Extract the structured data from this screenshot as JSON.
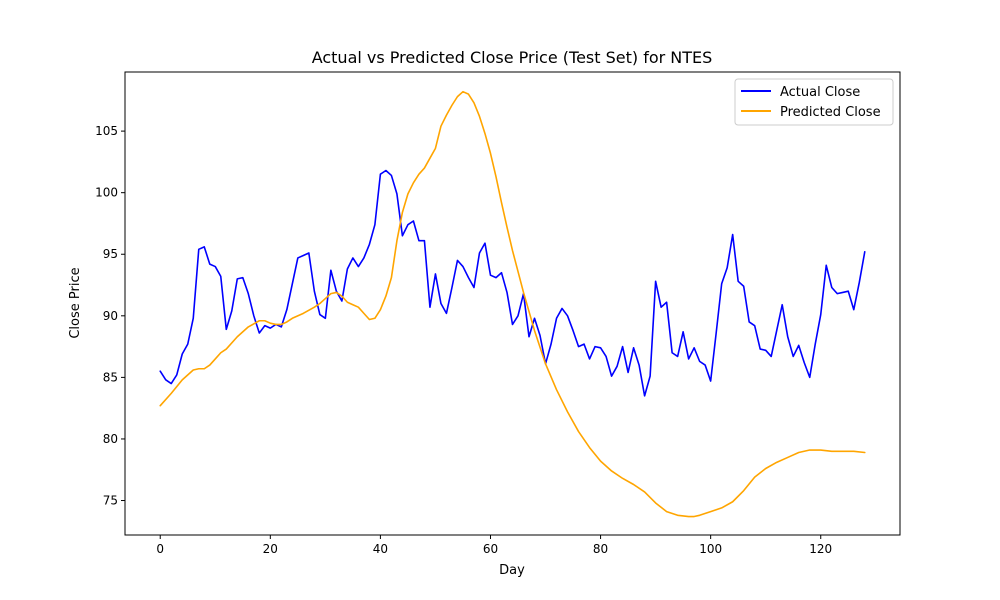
{
  "chart_data": {
    "type": "line",
    "title": "Actual vs Predicted Close Price (Test Set) for NTES",
    "xlabel": "Day",
    "ylabel": "Close Price",
    "xlim": [
      -6.4,
      134.4
    ],
    "ylim": [
      72.2,
      109.8
    ],
    "xticks": [
      0,
      20,
      40,
      60,
      80,
      100,
      120
    ],
    "yticks": [
      75,
      80,
      85,
      90,
      95,
      100,
      105
    ],
    "grid": false,
    "legend_position": "top-right",
    "series": [
      {
        "name": "Actual Close",
        "color": "#0000ff",
        "x": [
          0,
          1,
          2,
          3,
          4,
          5,
          6,
          7,
          8,
          9,
          10,
          11,
          12,
          13,
          14,
          15,
          16,
          17,
          18,
          19,
          20,
          21,
          22,
          23,
          24,
          25,
          26,
          27,
          28,
          29,
          30,
          31,
          32,
          33,
          34,
          35,
          36,
          37,
          38,
          39,
          40,
          41,
          42,
          43,
          44,
          45,
          46,
          47,
          48,
          49,
          50,
          51,
          52,
          53,
          54,
          55,
          56,
          57,
          58,
          59,
          60,
          61,
          62,
          63,
          64,
          65,
          66,
          67,
          68,
          69,
          70,
          71,
          72,
          73,
          74,
          75,
          76,
          77,
          78,
          79,
          80,
          81,
          82,
          83,
          84,
          85,
          86,
          87,
          88,
          89,
          90,
          91,
          92,
          93,
          94,
          95,
          96,
          97,
          98,
          99,
          100,
          101,
          102,
          103,
          104,
          105,
          106,
          107,
          108,
          109,
          110,
          111,
          112,
          113,
          114,
          115,
          116,
          117,
          118,
          119,
          120,
          121,
          122,
          123,
          124,
          125,
          126,
          127,
          128
        ],
        "values": [
          85.5,
          84.8,
          84.5,
          85.2,
          86.9,
          87.7,
          89.8,
          95.4,
          95.6,
          94.2,
          94.0,
          93.2,
          88.9,
          90.4,
          93.0,
          93.1,
          91.8,
          90.0,
          88.6,
          89.2,
          89.0,
          89.3,
          89.1,
          90.5,
          92.6,
          94.7,
          94.9,
          95.1,
          92.0,
          90.1,
          89.8,
          93.7,
          92.0,
          91.2,
          93.8,
          94.7,
          94.0,
          94.7,
          95.8,
          97.4,
          101.5,
          101.8,
          101.4,
          99.9,
          96.5,
          97.4,
          97.7,
          96.1,
          96.1,
          90.7,
          93.4,
          91.0,
          90.2,
          92.3,
          94.5,
          94.0,
          93.1,
          92.3,
          95.1,
          95.9,
          93.3,
          93.1,
          93.5,
          91.9,
          89.3,
          90.0,
          91.8,
          88.3,
          89.8,
          88.4,
          86.1,
          87.7,
          89.8,
          90.6,
          90.0,
          88.8,
          87.5,
          87.7,
          86.5,
          87.5,
          87.4,
          86.7,
          85.1,
          85.9,
          87.5,
          85.4,
          87.4,
          86.0,
          83.5,
          85.1,
          92.8,
          90.7,
          91.1,
          87.0,
          86.7,
          88.7,
          86.5,
          87.4,
          86.3,
          86.0,
          84.7,
          88.6,
          92.6,
          93.9,
          96.6,
          92.8,
          92.4,
          89.5,
          89.2,
          87.3,
          87.2,
          86.7,
          88.8,
          90.9,
          88.3,
          86.7,
          87.6,
          86.2,
          85.0,
          87.7,
          90.1,
          94.1,
          92.3,
          91.8,
          91.9,
          92.0,
          90.5,
          92.7,
          95.2
        ]
      },
      {
        "name": "Predicted Close",
        "color": "#ffa500",
        "x": [
          0,
          2,
          4,
          6,
          7,
          8,
          9,
          10,
          11,
          12,
          14,
          16,
          18,
          19,
          20,
          21,
          22,
          23,
          24,
          26,
          28,
          29,
          30,
          31,
          32,
          33,
          34,
          35,
          36,
          37,
          38,
          39,
          40,
          41,
          42,
          43,
          44,
          45,
          46,
          47,
          48,
          49,
          50,
          51,
          52,
          53,
          54,
          55,
          56,
          57,
          58,
          59,
          60,
          61,
          62,
          63,
          64,
          66,
          68,
          70,
          72,
          74,
          76,
          78,
          80,
          82,
          84,
          86,
          88,
          90,
          92,
          94,
          96,
          97,
          98,
          100,
          102,
          104,
          106,
          108,
          110,
          112,
          114,
          116,
          118,
          120,
          122,
          124,
          126,
          128
        ],
        "values": [
          82.7,
          83.7,
          84.8,
          85.6,
          85.7,
          85.7,
          86.0,
          86.5,
          87.0,
          87.3,
          88.3,
          89.1,
          89.6,
          89.6,
          89.4,
          89.3,
          89.3,
          89.5,
          89.8,
          90.2,
          90.7,
          91.0,
          91.4,
          91.8,
          91.9,
          91.6,
          91.1,
          90.9,
          90.7,
          90.2,
          89.7,
          89.8,
          90.5,
          91.6,
          93.1,
          96.1,
          98.4,
          99.9,
          100.8,
          101.5,
          102.0,
          102.8,
          103.6,
          105.4,
          106.3,
          107.1,
          107.8,
          108.2,
          108.0,
          107.3,
          106.2,
          104.8,
          103.2,
          101.3,
          99.2,
          97.2,
          95.3,
          91.9,
          88.8,
          86.1,
          84.0,
          82.2,
          80.6,
          79.3,
          78.2,
          77.4,
          76.8,
          76.3,
          75.7,
          74.8,
          74.1,
          73.8,
          73.7,
          73.7,
          73.8,
          74.1,
          74.4,
          74.9,
          75.8,
          76.9,
          77.6,
          78.1,
          78.5,
          78.9,
          79.1,
          79.1,
          79.0,
          79.0,
          79.0,
          78.9
        ]
      }
    ]
  }
}
